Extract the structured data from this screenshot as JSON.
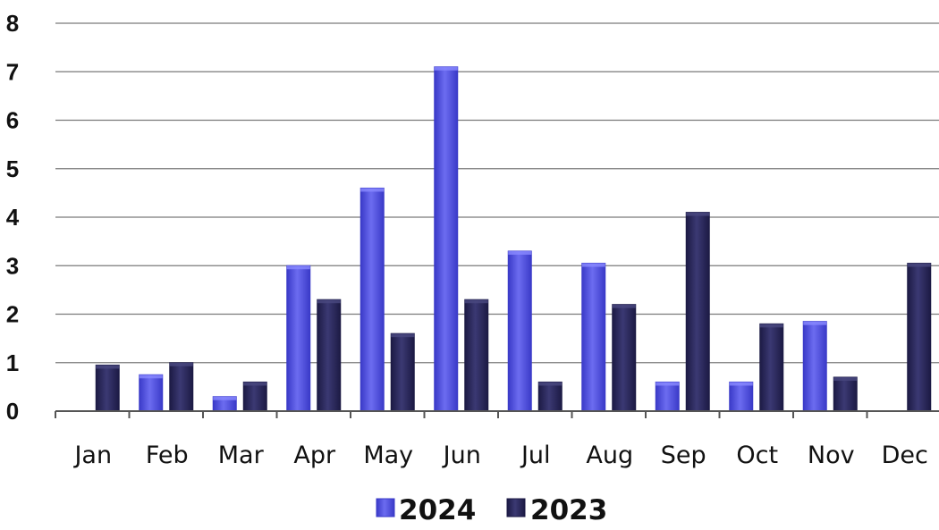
{
  "chart_data": {
    "type": "bar",
    "categories": [
      "Jan",
      "Feb",
      "Mar",
      "Apr",
      "May",
      "Jun",
      "Jul",
      "Aug",
      "Sep",
      "Oct",
      "Nov",
      "Dec"
    ],
    "series": [
      {
        "name": "2024",
        "values": [
          0,
          0.75,
          0.3,
          3.0,
          4.6,
          7.1,
          3.3,
          3.05,
          0.6,
          0.6,
          1.85,
          0
        ],
        "color": "#3a3ac8"
      },
      {
        "name": "2023",
        "values": [
          0.95,
          1.0,
          0.6,
          2.3,
          1.6,
          2.3,
          0.6,
          2.2,
          4.1,
          1.8,
          0.7,
          3.05
        ],
        "color": "#1c1a44"
      }
    ],
    "ylim": [
      0,
      8
    ],
    "yticks": [
      "0",
      "1",
      "2",
      "3",
      "4",
      "5",
      "6",
      "7",
      "8"
    ],
    "grid": true,
    "legend": "bottom-center",
    "title": "",
    "xlabel": "",
    "ylabel": ""
  }
}
